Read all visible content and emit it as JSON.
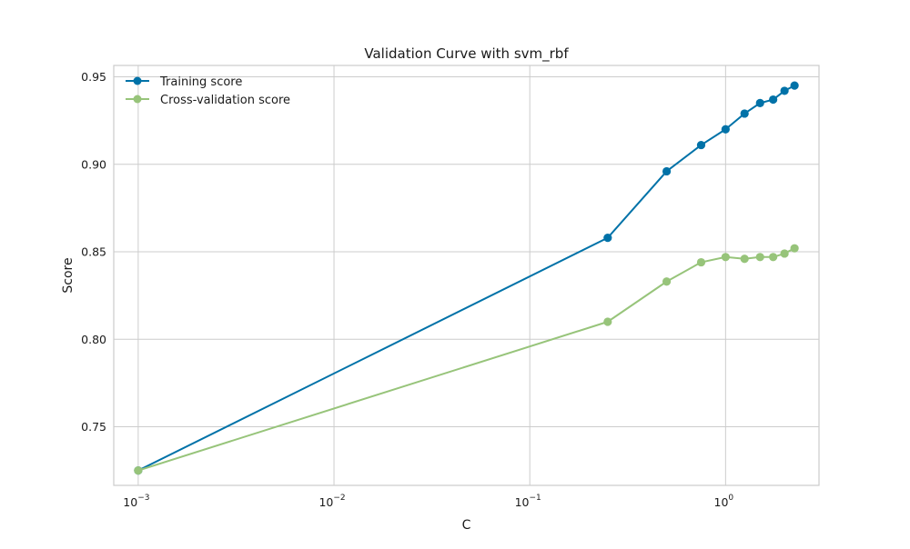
{
  "chart_data": {
    "type": "line",
    "title": "Validation Curve with svm_rbf",
    "xlabel": "C",
    "ylabel": "Score",
    "xscale": "log",
    "xlim": [
      0.00075,
      3.0
    ],
    "ylim": [
      0.7165,
      0.9565
    ],
    "x": [
      0.001,
      0.25,
      0.5,
      0.75,
      1.0,
      1.25,
      1.5,
      1.75,
      2.0,
      2.25
    ],
    "series": [
      {
        "name": "Training score",
        "color": "#0072a8",
        "values": [
          0.725,
          0.858,
          0.896,
          0.911,
          0.92,
          0.929,
          0.935,
          0.937,
          0.942,
          0.945
        ]
      },
      {
        "name": "Cross-validation score",
        "color": "#97c47a",
        "values": [
          0.725,
          0.81,
          0.833,
          0.844,
          0.847,
          0.846,
          0.847,
          0.847,
          0.849,
          0.852
        ]
      }
    ],
    "yticks": [
      0.75,
      0.8,
      0.85,
      0.9,
      0.95
    ],
    "ytick_labels": [
      "0.75",
      "0.80",
      "0.85",
      "0.90",
      "0.95"
    ],
    "xticks": [
      0.001,
      0.01,
      0.1,
      1
    ],
    "xtick_labels": [
      {
        "base": "10",
        "exp": "−3"
      },
      {
        "base": "10",
        "exp": "−2"
      },
      {
        "base": "10",
        "exp": "−1"
      },
      {
        "base": "10",
        "exp": "0"
      }
    ],
    "grid": true,
    "legend_position": "top-left"
  }
}
